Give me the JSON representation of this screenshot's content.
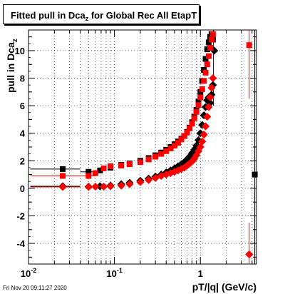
{
  "title": {
    "main": "Fitted pull in Dca",
    "sub": "z",
    "rest": " for Global Rec All EtapT"
  },
  "ylabel": {
    "main": "pull in Dca",
    "sub": "z"
  },
  "xlabel": "pT/|q| (GeV/c)",
  "footer": "Fri Nov 20 09:11:27 2020",
  "chart_data": {
    "type": "scatter",
    "title": "Fitted pull in Dca_z for Global Rec All EtapT",
    "xlabel": "pT/|q| (GeV/c)",
    "ylabel": "pull in Dca_z",
    "xscale": "log",
    "xlim": [
      0.01,
      4.5
    ],
    "ylim": [
      -5.5,
      11.5
    ],
    "grid": true,
    "x_tick_labels": [
      "10^-2",
      "10^-1",
      "1"
    ],
    "y_tick_labels": [
      "-4",
      "-2",
      "0",
      "2",
      "4",
      "6",
      "8",
      "10"
    ],
    "series": [
      {
        "marker": "square",
        "color": "#000000",
        "x": [
          0.025,
          0.05,
          0.068,
          0.09,
          0.12,
          0.15,
          0.2,
          0.25,
          0.3,
          0.35,
          0.4,
          0.45,
          0.5,
          0.55,
          0.6,
          0.65,
          0.7,
          0.75,
          0.8,
          0.85,
          0.9,
          0.95,
          1.0,
          1.05,
          1.1,
          1.15,
          1.2,
          1.25,
          1.3,
          1.35,
          1.4,
          4.3
        ],
        "y": [
          1.4,
          1.2,
          1.3,
          1.5,
          1.7,
          1.8,
          2.0,
          2.2,
          2.4,
          2.6,
          2.8,
          3.0,
          3.2,
          3.4,
          3.6,
          3.8,
          4.1,
          4.4,
          4.8,
          5.2,
          5.7,
          6.3,
          7.0,
          7.8,
          8.6,
          9.4,
          10.1,
          10.6,
          11.0,
          11.2,
          10.8,
          1.0
        ]
      },
      {
        "marker": "diamond",
        "color": "#000000",
        "x": [
          0.025,
          0.05,
          0.068,
          0.09,
          0.12,
          0.15,
          0.2,
          0.25,
          0.3,
          0.35,
          0.4,
          0.45,
          0.5,
          0.55,
          0.6,
          0.65,
          0.7,
          0.75,
          0.8,
          0.85,
          0.9,
          0.95,
          1.0,
          1.05,
          1.1,
          1.15,
          1.2,
          1.25,
          1.3,
          1.35,
          1.4,
          1.45
        ],
        "y": [
          0.15,
          0.12,
          0.15,
          0.2,
          0.3,
          0.4,
          0.55,
          0.7,
          0.85,
          1.0,
          1.15,
          1.3,
          1.45,
          1.6,
          1.75,
          1.9,
          2.1,
          2.3,
          2.55,
          2.8,
          3.1,
          3.5,
          4.0,
          4.6,
          5.3,
          5.9,
          6.4,
          6.6,
          6.2,
          6.8,
          7.5,
          10.0
        ]
      },
      {
        "marker": "square",
        "color": "#ff0000",
        "x": [
          0.025,
          0.05,
          0.06,
          0.075,
          0.09,
          0.12,
          0.15,
          0.2,
          0.25,
          0.3,
          0.35,
          0.4,
          0.45,
          0.5,
          0.55,
          0.6,
          0.65,
          0.7,
          0.75,
          0.8,
          0.85,
          0.9,
          0.95,
          1.0,
          1.05,
          1.1,
          1.15,
          1.2,
          1.25,
          1.3,
          1.35,
          1.4,
          3.7
        ],
        "y": [
          0.9,
          0.9,
          1.1,
          1.45,
          1.6,
          1.65,
          1.75,
          1.9,
          2.1,
          2.3,
          2.5,
          2.7,
          2.9,
          3.1,
          3.3,
          3.55,
          3.8,
          4.05,
          4.35,
          4.7,
          5.1,
          5.55,
          6.05,
          6.6,
          7.2,
          7.8,
          8.4,
          9.0,
          9.6,
          10.2,
          10.8,
          11.2,
          10.4
        ]
      },
      {
        "marker": "diamond",
        "color": "#ff0000",
        "x": [
          0.025,
          0.05,
          0.06,
          0.075,
          0.09,
          0.12,
          0.15,
          0.2,
          0.25,
          0.3,
          0.35,
          0.4,
          0.45,
          0.5,
          0.55,
          0.6,
          0.65,
          0.7,
          0.75,
          0.8,
          0.85,
          0.9,
          0.95,
          1.0,
          1.05,
          1.1,
          1.15,
          1.2,
          1.25,
          1.3,
          1.35,
          1.4,
          3.7
        ],
        "y": [
          0.1,
          0.1,
          0.12,
          0.12,
          0.15,
          0.2,
          0.3,
          0.45,
          0.6,
          0.75,
          0.9,
          1.0,
          1.1,
          1.2,
          1.3,
          1.4,
          1.5,
          1.65,
          1.8,
          1.95,
          2.15,
          2.4,
          2.7,
          3.0,
          3.4,
          3.9,
          4.5,
          5.2,
          5.9,
          6.6,
          7.3,
          8.0,
          -4.8
        ]
      }
    ]
  }
}
